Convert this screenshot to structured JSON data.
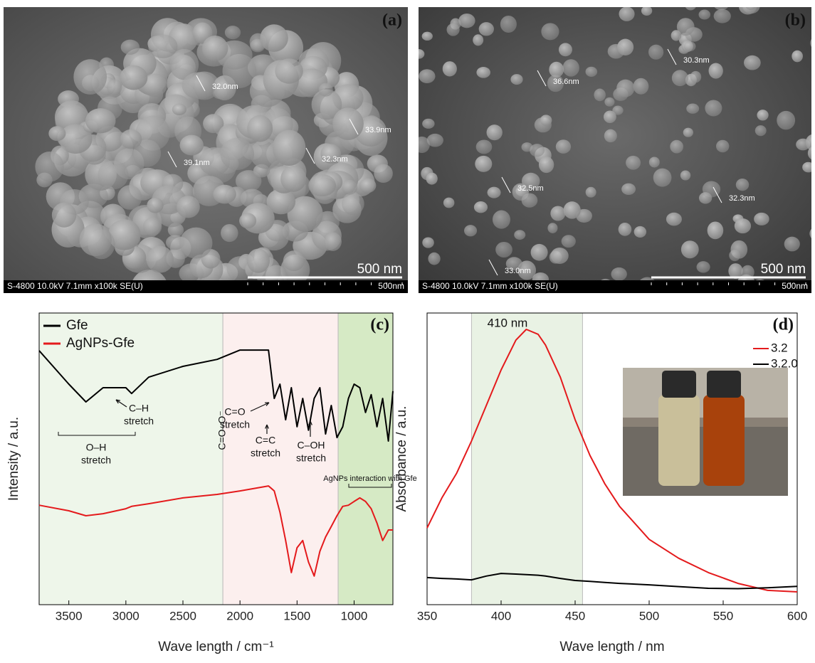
{
  "images": [
    {
      "label": "(a)",
      "measurements": [
        "32.0nm",
        "33.9nm",
        "39.1nm",
        "32.3nm"
      ],
      "scale_bar": "500 nm",
      "info": "S-4800 10.0kV 7.1mm x100k SE(U)",
      "scale": "500nm"
    },
    {
      "label": "(b)",
      "measurements": [
        "36.6nm",
        "30.3nm",
        "32.5nm",
        "32.3nm",
        "33.0nm"
      ],
      "scale_bar": "500 nm",
      "info": "S-4800 10.0kV 7.1mm x100k SE(U)",
      "scale": "500nm"
    }
  ],
  "chart_data": [
    {
      "type": "line",
      "label": "(c)",
      "xlabel": "Wave length / cm⁻¹",
      "ylabel": "Intensity / a.u.",
      "x": [
        3760,
        3500,
        3350,
        3200,
        3000,
        2950,
        2800,
        2500,
        2200,
        2000,
        1750,
        1700,
        1650,
        1600,
        1550,
        1500,
        1450,
        1400,
        1350,
        1300,
        1250,
        1200,
        1150,
        1100,
        1050,
        1000,
        950,
        900,
        850,
        800,
        750,
        700,
        660
      ],
      "series": [
        {
          "name": "Gfe",
          "color": "#000000",
          "values": [
            87.1,
            75.6,
            69.5,
            74.4,
            74.4,
            72.4,
            78,
            81.7,
            84.1,
            87.3,
            87.3,
            70.7,
            75.6,
            63.4,
            74.4,
            61,
            70.7,
            59.8,
            70.7,
            74.4,
            58.5,
            68.3,
            57.3,
            61,
            70.7,
            75.6,
            74.4,
            65.9,
            72,
            61,
            70.7,
            56.1,
            73.2
          ]
        },
        {
          "name": "AgNPs-Gfe",
          "color": "#e41a1c",
          "values": [
            34.1,
            32.2,
            30.5,
            31.2,
            32.9,
            33.7,
            34.6,
            36.6,
            37.8,
            39,
            40.7,
            39,
            31.7,
            22,
            11,
            19.5,
            22,
            14.6,
            9.8,
            18.3,
            23.2,
            26.8,
            30.5,
            33.7,
            34.1,
            35.4,
            36.6,
            35.4,
            32.9,
            28,
            22,
            25.6,
            25.6
          ]
        }
      ],
      "xlim": [
        3760,
        660
      ],
      "xticks": [
        3500,
        3000,
        2500,
        2000,
        1500,
        1000
      ],
      "ylim": [
        0,
        100
      ],
      "regions": [
        {
          "range": [
            3760,
            2150
          ],
          "color": "#eef6ea"
        },
        {
          "range": [
            2150,
            1140
          ],
          "color": "#fcefee"
        },
        {
          "range": [
            1140,
            660
          ],
          "color": "#d6eac5"
        }
      ],
      "annotations": [
        {
          "lines": [
            "C–H",
            "stretch"
          ]
        },
        {
          "lines": [
            "O–H",
            "stretch"
          ]
        },
        {
          "lines": [
            "C=O",
            "stretch"
          ]
        },
        {
          "lines": [
            "C=O–O⁻"
          ]
        },
        {
          "lines": [
            "C=C",
            "stretch"
          ]
        },
        {
          "lines": [
            "C–OH",
            "stretch"
          ]
        },
        {
          "lines": [
            "AgNPs interaction with Gfe"
          ]
        }
      ],
      "legend": "upper left"
    },
    {
      "type": "line",
      "label": "(d)",
      "xlabel": "Wave length / nm",
      "ylabel": "Absorbance / a.u.",
      "x": [
        350,
        360,
        370,
        380,
        390,
        400,
        410,
        417,
        425,
        430,
        440,
        450,
        460,
        470,
        480,
        500,
        520,
        540,
        560,
        580,
        600
      ],
      "series": [
        {
          "name": "3.2",
          "color": "#e41a1c",
          "values": [
            26.3,
            36.6,
            45.1,
            56.1,
            68.3,
            80.5,
            90.7,
            94.4,
            92.7,
            89,
            78,
            63.4,
            51.2,
            41.5,
            33.7,
            22.4,
            15.9,
            11,
            7.3,
            4.9,
            4.4
          ]
        },
        {
          "name": "3.2.0",
          "color": "#000000",
          "values": [
            9.3,
            9,
            8.8,
            8.5,
            9.8,
            10.7,
            10.5,
            10.3,
            10.1,
            9.8,
            9,
            8.3,
            8,
            7.6,
            7.3,
            6.8,
            6.2,
            5.6,
            5.5,
            5.8,
            6.3
          ]
        }
      ],
      "xlim": [
        350,
        600
      ],
      "xticks": [
        350,
        400,
        450,
        500,
        550,
        600
      ],
      "ylim": [
        0,
        100
      ],
      "regions": [
        {
          "range": [
            380,
            455
          ],
          "color": "#e9f2e4"
        }
      ],
      "annotations": [
        {
          "lines": [
            "410 nm"
          ]
        }
      ],
      "legend": "upper right"
    }
  ]
}
